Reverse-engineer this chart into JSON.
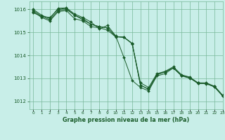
{
  "title": "Graphe pression niveau de la mer (hPa)",
  "background_color": "#c8eee8",
  "grid_color": "#78b89a",
  "line_color": "#1a5c2a",
  "xlim": [
    -0.5,
    23
  ],
  "ylim": [
    1011.65,
    1016.35
  ],
  "yticks": [
    1012,
    1013,
    1014,
    1015,
    1016
  ],
  "xticks": [
    0,
    1,
    2,
    3,
    4,
    5,
    6,
    7,
    8,
    9,
    10,
    11,
    12,
    13,
    14,
    15,
    16,
    17,
    18,
    19,
    20,
    21,
    22,
    23
  ],
  "series": [
    [
      1015.85,
      1015.7,
      1015.65,
      1016.0,
      1016.05,
      1015.75,
      1015.55,
      1015.35,
      1015.25,
      1015.2,
      1014.82,
      1014.78,
      1014.52,
      1012.7,
      1012.52,
      1013.15,
      1013.28,
      1013.45,
      1013.12,
      1013.02,
      1012.77,
      1012.77,
      1012.62,
      1012.22
    ],
    [
      1015.9,
      1015.65,
      1015.5,
      1015.9,
      1015.95,
      1015.6,
      1015.5,
      1015.25,
      1015.2,
      1015.1,
      1014.8,
      1014.8,
      1014.5,
      1012.8,
      1012.6,
      1013.2,
      1013.3,
      1013.5,
      1013.15,
      1013.05,
      1012.8,
      1012.8,
      1012.65,
      1012.25
    ],
    [
      1015.95,
      1015.7,
      1015.55,
      1015.95,
      1016.0,
      1015.75,
      1015.6,
      1015.35,
      1015.25,
      1015.2,
      1014.82,
      1014.78,
      1014.52,
      1012.7,
      1012.52,
      1013.15,
      1013.28,
      1013.45,
      1013.12,
      1013.02,
      1012.77,
      1012.77,
      1012.62,
      1012.22
    ],
    [
      1016.0,
      1015.75,
      1015.6,
      1016.05,
      1016.07,
      1015.8,
      1015.65,
      1015.45,
      1015.15,
      1015.3,
      1014.85,
      1013.9,
      1012.9,
      1012.6,
      1012.45,
      1013.1,
      1013.2,
      1013.45,
      1013.1,
      1013.0,
      1012.8,
      1012.75,
      1012.65,
      1012.25
    ]
  ]
}
